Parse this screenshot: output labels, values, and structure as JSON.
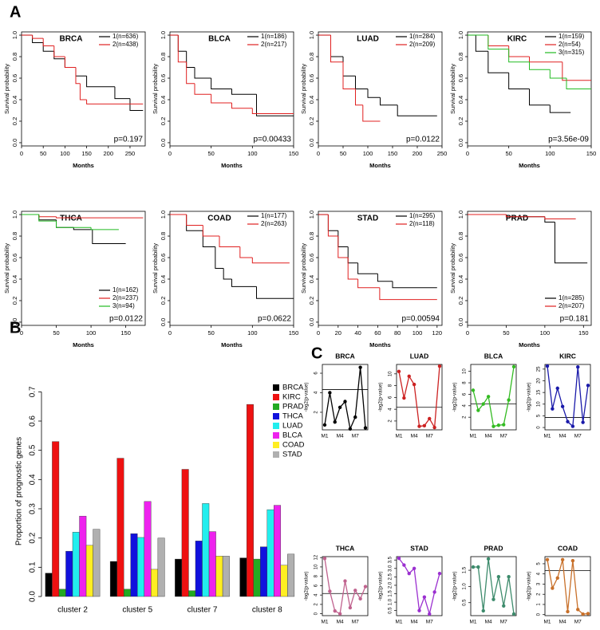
{
  "panel_labels": [
    "A",
    "B",
    "C"
  ],
  "chart_data": [
    {
      "type": "step",
      "title": "BRCA",
      "xlabel": "Months",
      "ylabel": "Survival probability",
      "annotation": "p=0.197",
      "legend": "upper right",
      "xlim": [
        0,
        285
      ],
      "xticks": [
        0,
        50,
        100,
        150,
        200,
        250
      ],
      "ylim": [
        -0.03,
        1.03
      ],
      "yticks": [
        {
          "value": 0,
          "label": "0.0"
        },
        0.2,
        0.4,
        0.6,
        0.8,
        {
          "value": 1,
          "label": "1.0"
        }
      ],
      "series": [
        {
          "name": "1(n=636)",
          "color": "#000000",
          "x": [
            0,
            25,
            50,
            75,
            100,
            125,
            150,
            215,
            250,
            280
          ],
          "values": [
            1,
            0.93,
            0.85,
            0.78,
            0.7,
            0.62,
            0.52,
            0.41,
            0.3,
            0.3
          ]
        },
        {
          "name": "2(n=438)",
          "color": "#e02020",
          "x": [
            0,
            25,
            50,
            75,
            100,
            125,
            135,
            150,
            280
          ],
          "values": [
            1,
            0.97,
            0.9,
            0.8,
            0.7,
            0.55,
            0.4,
            0.36,
            0.36
          ]
        }
      ]
    },
    {
      "type": "step",
      "title": "BLCA",
      "xlabel": "Months",
      "ylabel": "Survival probability",
      "annotation": "p=0.00433",
      "legend": "upper right",
      "xlim": [
        0,
        150
      ],
      "xticks": [
        0,
        50,
        100,
        150
      ],
      "ylim": [
        -0.03,
        1.03
      ],
      "yticks": [
        {
          "value": 0,
          "label": "0.0"
        },
        0.2,
        0.4,
        0.6,
        0.8,
        {
          "value": 1,
          "label": "1.0"
        }
      ],
      "series": [
        {
          "name": "1(n=186)",
          "color": "#000000",
          "x": [
            0,
            10,
            20,
            30,
            50,
            75,
            105,
            150
          ],
          "values": [
            1,
            0.85,
            0.7,
            0.6,
            0.5,
            0.45,
            0.25,
            0.25
          ]
        },
        {
          "name": "2(n=217)",
          "color": "#e02020",
          "x": [
            0,
            10,
            20,
            30,
            50,
            75,
            100,
            150
          ],
          "values": [
            1,
            0.75,
            0.55,
            0.45,
            0.37,
            0.32,
            0.27,
            0.27
          ]
        }
      ]
    },
    {
      "type": "step",
      "title": "LUAD",
      "xlabel": "Months",
      "ylabel": "Survival probability",
      "annotation": "p=0.0122",
      "legend": "upper right",
      "xlim": [
        0,
        250
      ],
      "xticks": [
        0,
        50,
        100,
        150,
        200,
        250
      ],
      "ylim": [
        -0.03,
        1.03
      ],
      "yticks": [
        {
          "value": 0,
          "label": "0.0"
        },
        0.2,
        0.4,
        0.6,
        0.8,
        {
          "value": 1,
          "label": "1.0"
        }
      ],
      "series": [
        {
          "name": "1(n=284)",
          "color": "#000000",
          "x": [
            0,
            25,
            50,
            75,
            100,
            125,
            160,
            240
          ],
          "values": [
            1,
            0.8,
            0.62,
            0.5,
            0.42,
            0.35,
            0.25,
            0.25
          ]
        },
        {
          "name": "2(n=209)",
          "color": "#e02020",
          "x": [
            0,
            25,
            50,
            75,
            90,
            125
          ],
          "values": [
            1,
            0.75,
            0.5,
            0.35,
            0.2,
            0.2
          ]
        }
      ]
    },
    {
      "type": "step",
      "title": "KIRC",
      "xlabel": "Months",
      "ylabel": "Survival probability",
      "annotation": "p=3.56e-09",
      "legend": "upper right",
      "xlim": [
        0,
        150
      ],
      "xticks": [
        0,
        50,
        100,
        150
      ],
      "ylim": [
        -0.03,
        1.03
      ],
      "yticks": [
        {
          "value": 0,
          "label": "0.0"
        },
        0.2,
        0.4,
        0.6,
        0.8,
        {
          "value": 1,
          "label": "1.0"
        }
      ],
      "series": [
        {
          "name": "1(n=159)",
          "color": "#000000",
          "x": [
            0,
            10,
            25,
            50,
            75,
            100,
            125
          ],
          "values": [
            1,
            0.85,
            0.65,
            0.5,
            0.35,
            0.28,
            0.28
          ]
        },
        {
          "name": "2(n=54)",
          "color": "#e02020",
          "x": [
            0,
            25,
            50,
            75,
            115,
            150
          ],
          "values": [
            1,
            0.9,
            0.8,
            0.75,
            0.58,
            0.58
          ]
        },
        {
          "name": "3(n=315)",
          "color": "#22bb22",
          "x": [
            0,
            25,
            50,
            75,
            100,
            120,
            150
          ],
          "values": [
            1,
            0.87,
            0.75,
            0.68,
            0.6,
            0.5,
            0.5
          ]
        }
      ]
    },
    {
      "type": "step",
      "title": "THCA",
      "xlabel": "Months",
      "ylabel": "Survival probability",
      "annotation": "p=0.0122",
      "legend": "lower right",
      "xlim": [
        0,
        178
      ],
      "xticks": [
        0,
        50,
        100,
        150
      ],
      "ylim": [
        -0.03,
        1.03
      ],
      "yticks": [
        {
          "value": 0,
          "label": "0.0"
        },
        0.2,
        0.4,
        0.6,
        0.8,
        {
          "value": 1,
          "label": "1.0"
        }
      ],
      "series": [
        {
          "name": "1(n=162)",
          "color": "#000000",
          "x": [
            0,
            25,
            50,
            75,
            102,
            150
          ],
          "values": [
            1,
            0.95,
            0.88,
            0.86,
            0.73,
            0.73
          ]
        },
        {
          "name": "2(n=237)",
          "color": "#e02020",
          "x": [
            0,
            25,
            50,
            175
          ],
          "values": [
            1,
            0.98,
            0.97,
            0.97
          ]
        },
        {
          "name": "3(n=94)",
          "color": "#22bb22",
          "x": [
            0,
            25,
            50,
            100,
            140
          ],
          "values": [
            1,
            0.94,
            0.88,
            0.86,
            0.86
          ]
        }
      ]
    },
    {
      "type": "step",
      "title": "COAD",
      "xlabel": "Months",
      "ylabel": "Survival probability",
      "annotation": "p=0.0622",
      "legend": "upper right",
      "xlim": [
        0,
        150
      ],
      "xticks": [
        0,
        50,
        100,
        150
      ],
      "ylim": [
        -0.03,
        1.03
      ],
      "yticks": [
        {
          "value": 0,
          "label": "0.0"
        },
        0.2,
        0.4,
        0.6,
        0.8,
        {
          "value": 1,
          "label": "1.0"
        }
      ],
      "series": [
        {
          "name": "1(n=177)",
          "color": "#000000",
          "x": [
            0,
            20,
            40,
            55,
            65,
            75,
            105,
            150
          ],
          "values": [
            1,
            0.85,
            0.7,
            0.5,
            0.4,
            0.33,
            0.22,
            0.22
          ]
        },
        {
          "name": "2(n=263)",
          "color": "#e02020",
          "x": [
            0,
            20,
            40,
            60,
            85,
            100,
            145
          ],
          "values": [
            1,
            0.9,
            0.8,
            0.7,
            0.6,
            0.55,
            0.55
          ]
        }
      ]
    },
    {
      "type": "step",
      "title": "STAD",
      "xlabel": "Months",
      "ylabel": "Survival probability",
      "annotation": "p=0.00594",
      "legend": "upper right",
      "xlim": [
        0,
        125
      ],
      "xticks": [
        0,
        20,
        40,
        60,
        80,
        100,
        120
      ],
      "ylim": [
        -0.03,
        1.03
      ],
      "yticks": [
        {
          "value": 0,
          "label": "0.0"
        },
        0.2,
        0.4,
        0.6,
        0.8,
        {
          "value": 1,
          "label": "1.0"
        }
      ],
      "series": [
        {
          "name": "1(n=295)",
          "color": "#000000",
          "x": [
            0,
            10,
            20,
            30,
            40,
            60,
            75,
            120
          ],
          "values": [
            1,
            0.85,
            0.7,
            0.55,
            0.45,
            0.38,
            0.32,
            0.32
          ]
        },
        {
          "name": "2(n=118)",
          "color": "#e02020",
          "x": [
            0,
            10,
            20,
            30,
            40,
            62,
            120
          ],
          "values": [
            1,
            0.8,
            0.6,
            0.4,
            0.32,
            0.21,
            0.21
          ]
        }
      ]
    },
    {
      "type": "step",
      "title": "PRAD",
      "xlabel": "Months",
      "ylabel": "Survival probability",
      "annotation": "p=0.181",
      "legend": "lower right",
      "xlim": [
        0,
        160
      ],
      "xticks": [
        0,
        50,
        100,
        150
      ],
      "ylim": [
        -0.03,
        1.03
      ],
      "yticks": [
        {
          "value": 0,
          "label": "0.0"
        },
        0.2,
        0.4,
        0.6,
        0.8,
        {
          "value": 1,
          "label": "1.0"
        }
      ],
      "series": [
        {
          "name": "1(n=285)",
          "color": "#000000",
          "x": [
            0,
            50,
            100,
            113,
            155
          ],
          "values": [
            1,
            0.98,
            0.93,
            0.55,
            0.55
          ]
        },
        {
          "name": "2(n=207)",
          "color": "#e02020",
          "x": [
            0,
            50,
            100,
            140
          ],
          "values": [
            1,
            0.98,
            0.96,
            0.96
          ]
        }
      ]
    },
    {
      "type": "bar",
      "ylabel": "Proportion of prognostic genes",
      "categories": [
        "cluster 2",
        "cluster 5",
        "cluster 7",
        "cluster 8"
      ],
      "ylim": [
        0,
        0.72
      ],
      "yticks": [
        {
          "value": 0,
          "label": "0.0"
        },
        0.1,
        0.2,
        0.3,
        0.4,
        0.5,
        0.6,
        0.7
      ],
      "legend": "upper right",
      "series": [
        {
          "name": "BRCA",
          "color": "#000000",
          "values": [
            0.08,
            0.12,
            0.128,
            0.132
          ]
        },
        {
          "name": "KIRC",
          "color": "#ee1111",
          "values": [
            0.53,
            0.473,
            0.435,
            0.657
          ]
        },
        {
          "name": "PRAD",
          "color": "#22aa22",
          "values": [
            0.025,
            0.025,
            0.02,
            0.128
          ]
        },
        {
          "name": "THCA",
          "color": "#1111dd",
          "values": [
            0.155,
            0.215,
            0.19,
            0.17
          ]
        },
        {
          "name": "LUAD",
          "color": "#22eeee",
          "values": [
            0.22,
            0.202,
            0.318,
            0.297
          ]
        },
        {
          "name": "BLCA",
          "color": "#ee22ee",
          "values": [
            0.275,
            0.325,
            0.222,
            0.312
          ]
        },
        {
          "name": "COAD",
          "color": "#ffee22",
          "values": [
            0.175,
            0.093,
            0.138,
            0.107
          ]
        },
        {
          "name": "STAD",
          "color": "#b0b0b0",
          "values": [
            0.23,
            0.2,
            0.138,
            0.145
          ]
        }
      ]
    },
    {
      "type": "line",
      "title": "BRCA",
      "ylabel": "-log2(p-value)",
      "color": "#000000",
      "threshold": 4.32,
      "categories": [
        "M1",
        null,
        null,
        "M4",
        null,
        null,
        "M7",
        null,
        null
      ],
      "ylim": [
        0.2,
        6.9
      ],
      "yticks": [
        2,
        4,
        6
      ],
      "values": [
        0.7,
        4,
        1,
        2.5,
        3.1,
        0.3,
        1.5,
        6.6,
        0.4
      ]
    },
    {
      "type": "line",
      "title": "LUAD",
      "ylabel": "-log2(p-value)",
      "color": "#cc2222",
      "threshold": 4.32,
      "categories": [
        "M1",
        null,
        null,
        "M4",
        null,
        null,
        "M7",
        null,
        null
      ],
      "ylim": [
        0.5,
        11.6
      ],
      "yticks": [
        2,
        4,
        6,
        8,
        10
      ],
      "values": [
        10.4,
        5.9,
        9.6,
        8.2,
        1.1,
        1.2,
        2.4,
        0.9,
        11.3
      ]
    },
    {
      "type": "line",
      "title": "BLCA",
      "ylabel": "-log2(p-value)",
      "color": "#33bb22",
      "threshold": 4.32,
      "categories": [
        "M1",
        null,
        null,
        "M4",
        null,
        null,
        "M7",
        null,
        null
      ],
      "ylim": [
        -0.2,
        11.2
      ],
      "yticks": [
        2,
        4,
        6,
        8,
        10
      ],
      "values": [
        6.7,
        3.2,
        4.3,
        5.6,
        0.4,
        0.6,
        0.7,
        5,
        10.8
      ]
    },
    {
      "type": "line",
      "title": "KIRC",
      "ylabel": "-log2(p-value)",
      "color": "#1a1aaa",
      "threshold": 4.32,
      "categories": [
        "M1",
        null,
        null,
        "M4",
        null,
        null,
        "M7",
        null,
        null
      ],
      "ylim": [
        -1,
        27
      ],
      "yticks": [
        0,
        5,
        10,
        15,
        20,
        25
      ],
      "values": [
        26.3,
        8,
        16.8,
        9,
        2.5,
        0.5,
        25.9,
        2.2,
        18
      ]
    },
    {
      "type": "line",
      "title": "THCA",
      "ylabel": "-log2(p-value)",
      "color": "#c0628e",
      "threshold": 4.32,
      "categories": [
        "M1",
        null,
        null,
        "M4",
        null,
        null,
        "M7",
        null,
        null
      ],
      "ylim": [
        -0.4,
        12.2
      ],
      "yticks": [
        0,
        2,
        4,
        6,
        8,
        10,
        12
      ],
      "values": [
        11.8,
        4.8,
        0.6,
        0,
        7,
        1.3,
        5,
        3.2,
        5.8
      ]
    },
    {
      "type": "line",
      "title": "STAD",
      "ylabel": "-log2(p-value)",
      "color": "#9b30d0",
      "threshold": 4.32,
      "categories": [
        "M1",
        null,
        null,
        "M4",
        null,
        null,
        "M7",
        null,
        null
      ],
      "ylim": [
        0.2,
        3.7
      ],
      "yticks": [
        0.5,
        {
          "value": 1,
          "label": "1.0"
        },
        1.5,
        {
          "value": 2,
          "label": "2.0"
        },
        2.5,
        {
          "value": 3,
          "label": "3.0"
        },
        3.5
      ],
      "values": [
        3.6,
        3.2,
        2.7,
        3.0,
        0.5,
        1.3,
        0.3,
        1.6,
        2.7
      ]
    },
    {
      "type": "line",
      "title": "PRAD",
      "ylabel": "-log2(p-value)",
      "color": "#3d8b6c",
      "threshold": 4.32,
      "categories": [
        "M1",
        null,
        null,
        "M4",
        null,
        null,
        "M7",
        null,
        null
      ],
      "ylim": [
        0.1,
        1.92
      ],
      "yticks": [
        0.5,
        {
          "value": 1,
          "label": "1.0"
        },
        1.5
      ],
      "values": [
        1.6,
        1.6,
        0.25,
        1.85,
        0.6,
        1.3,
        0.4,
        1.3,
        0.15
      ]
    },
    {
      "type": "line",
      "title": "COAD",
      "ylabel": "-log2(p-value)",
      "color": "#c8702a",
      "threshold": 4.32,
      "categories": [
        "M1",
        null,
        null,
        "M4",
        null,
        null,
        "M7",
        null,
        null
      ],
      "ylim": [
        -0.1,
        5.7
      ],
      "yticks": [
        0,
        1,
        2,
        3,
        4,
        5
      ],
      "values": [
        5.4,
        2.6,
        3.6,
        5.4,
        0.3,
        5.3,
        0.5,
        0.05,
        0.1
      ]
    }
  ]
}
